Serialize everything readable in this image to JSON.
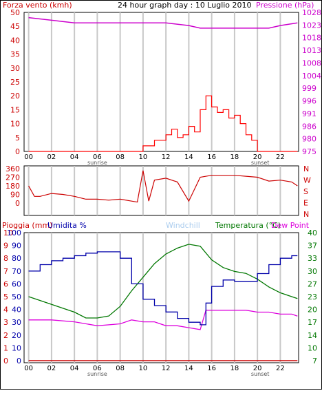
{
  "header": {
    "left_label": "Forza vento (kmh)",
    "title": "24 hour graph day : 10 Luglio 2010",
    "right_label": "Pressione (hPa)"
  },
  "colors": {
    "wind": "#ff0000",
    "gust_avg": "#0000cc",
    "pressure": "#cc00cc",
    "direction": "#cc0000",
    "rain": "#cc0000",
    "humidity": "#0000aa",
    "windchill": "#aaccee",
    "temperature": "#007700",
    "dewpoint": "#dd00dd",
    "grid": "#c8c8c8"
  },
  "x_axis": {
    "ticks": [
      "00",
      "02",
      "04",
      "06",
      "08",
      "10",
      "12",
      "14",
      "16",
      "18",
      "20",
      "22"
    ],
    "tick_hours": [
      0,
      2,
      4,
      6,
      8,
      10,
      12,
      14,
      16,
      18,
      20,
      22
    ],
    "sunrise_label": "sunrise",
    "sunset_label": "sunset",
    "sunrise_hour": 6,
    "sunset_hour": 20
  },
  "wind_panel": {
    "y_left_ticks": [
      "50",
      "45",
      "40",
      "35",
      "30",
      "25",
      "20",
      "15",
      "10",
      "5",
      "0"
    ],
    "y_right_ticks": [
      "1028",
      "1023",
      "1018",
      "1013",
      "1008",
      "1004",
      "999",
      "996",
      "991",
      "986",
      "980",
      "975"
    ]
  },
  "direction_panel": {
    "y_ticks": [
      "360",
      "270",
      "180",
      "90",
      "0"
    ],
    "compass": [
      "N",
      "W",
      "S",
      "E",
      "N"
    ]
  },
  "bottom_panel": {
    "legend": {
      "rain": "Pioggia (mm)",
      "humidity": "Umidita %",
      "windchill": "Windchill",
      "temperature": "Temperatura (°C)",
      "dewpoint": "Dew Point"
    },
    "y_rain_ticks": [
      "10",
      "9",
      "8",
      "7",
      "6",
      "5",
      "4",
      "3",
      "2",
      "1",
      "0"
    ],
    "y_humidity_ticks": [
      "100",
      "90",
      "80",
      "70",
      "60",
      "50",
      "40",
      "30",
      "20",
      "10",
      "0"
    ],
    "y_temp_ticks": [
      "40",
      "37",
      "33",
      "30",
      "27",
      "23",
      "20",
      "17",
      "14",
      "10",
      "7"
    ]
  },
  "chart_data": [
    {
      "type": "line",
      "series": [
        {
          "name": "Forza vento (kmh)",
          "x": [
            0,
            1,
            2,
            3,
            4,
            5,
            6,
            7,
            8,
            9,
            10,
            11,
            12,
            12.5,
            13,
            13.5,
            14,
            14.5,
            15,
            15.5,
            16,
            16.5,
            17,
            17.5,
            18,
            18.5,
            19,
            19.5,
            20,
            20.5,
            21,
            22,
            23.5
          ],
          "y": [
            0,
            0,
            0,
            0,
            0,
            0,
            0,
            0,
            0,
            0,
            2,
            4,
            6,
            8,
            5,
            6,
            9,
            7,
            15,
            20,
            16,
            14,
            15,
            12,
            13,
            10,
            6,
            4,
            0,
            0,
            0,
            0,
            0
          ]
        },
        {
          "name": "Pressione (hPa)",
          "x": [
            0,
            2,
            4,
            6,
            8,
            10,
            12,
            14,
            15,
            16,
            17,
            18,
            19,
            20,
            21,
            22,
            23.5
          ],
          "y": [
            1026,
            1025,
            1024,
            1024,
            1024,
            1024,
            1024,
            1023,
            1022,
            1022,
            1022,
            1022,
            1022,
            1022,
            1022,
            1023,
            1024
          ]
        }
      ],
      "ylim": [
        0,
        50
      ],
      "ylim_right": [
        975,
        1028
      ]
    },
    {
      "type": "line",
      "series": [
        {
          "name": "wind direction",
          "x": [
            0,
            0.5,
            1,
            2,
            3,
            4,
            5,
            6,
            7,
            8,
            9,
            9.5,
            10,
            10.5,
            11,
            12,
            13,
            14,
            15,
            16,
            17,
            18,
            19,
            20,
            21,
            22,
            23,
            23.5
          ],
          "y": [
            180,
            70,
            70,
            100,
            90,
            70,
            40,
            40,
            30,
            40,
            20,
            10,
            340,
            20,
            240,
            260,
            220,
            20,
            270,
            290,
            290,
            290,
            280,
            270,
            230,
            240,
            220,
            180
          ]
        }
      ],
      "ylim": [
        0,
        360
      ]
    },
    {
      "type": "line",
      "series": [
        {
          "name": "Pioggia (mm)",
          "x": [
            0,
            23.5
          ],
          "y": [
            0,
            0
          ]
        },
        {
          "name": "Umidita %",
          "x": [
            0,
            1,
            2,
            3,
            4,
            5,
            6,
            7,
            8,
            9,
            10,
            11,
            12,
            13,
            14,
            15,
            15.5,
            16,
            17,
            18,
            19,
            20,
            21,
            22,
            23,
            23.5
          ],
          "y": [
            70,
            75,
            78,
            80,
            82,
            84,
            85,
            85,
            80,
            60,
            48,
            43,
            38,
            33,
            30,
            28,
            45,
            58,
            63,
            62,
            62,
            68,
            75,
            80,
            82,
            82
          ]
        },
        {
          "name": "Temperatura (°C)",
          "x": [
            0,
            1,
            2,
            3,
            4,
            5,
            6,
            7,
            8,
            9,
            10,
            11,
            12,
            13,
            14,
            15,
            16,
            17,
            18,
            19,
            20,
            21,
            22,
            23,
            23.5
          ],
          "y": [
            23.5,
            22.5,
            21.5,
            20.5,
            19.5,
            18,
            18,
            18.5,
            21,
            25,
            28.5,
            32,
            34.5,
            36,
            37,
            36.5,
            33,
            31,
            30,
            29.5,
            28,
            26,
            24.5,
            23.5,
            23
          ]
        },
        {
          "name": "Dew Point",
          "x": [
            0,
            2,
            4,
            6,
            8,
            9,
            10,
            11,
            12,
            13,
            14,
            15,
            15.5,
            16,
            17,
            18,
            19,
            20,
            21,
            22,
            23,
            23.5
          ],
          "y": [
            17.5,
            17.5,
            17,
            16,
            16.5,
            17.5,
            17,
            17,
            16,
            16,
            15.5,
            15,
            20,
            20,
            20,
            20,
            20,
            19.5,
            19.5,
            19,
            19,
            18.5
          ]
        }
      ],
      "ylim": [
        0,
        100
      ],
      "ylim_right": [
        7,
        40
      ]
    }
  ]
}
